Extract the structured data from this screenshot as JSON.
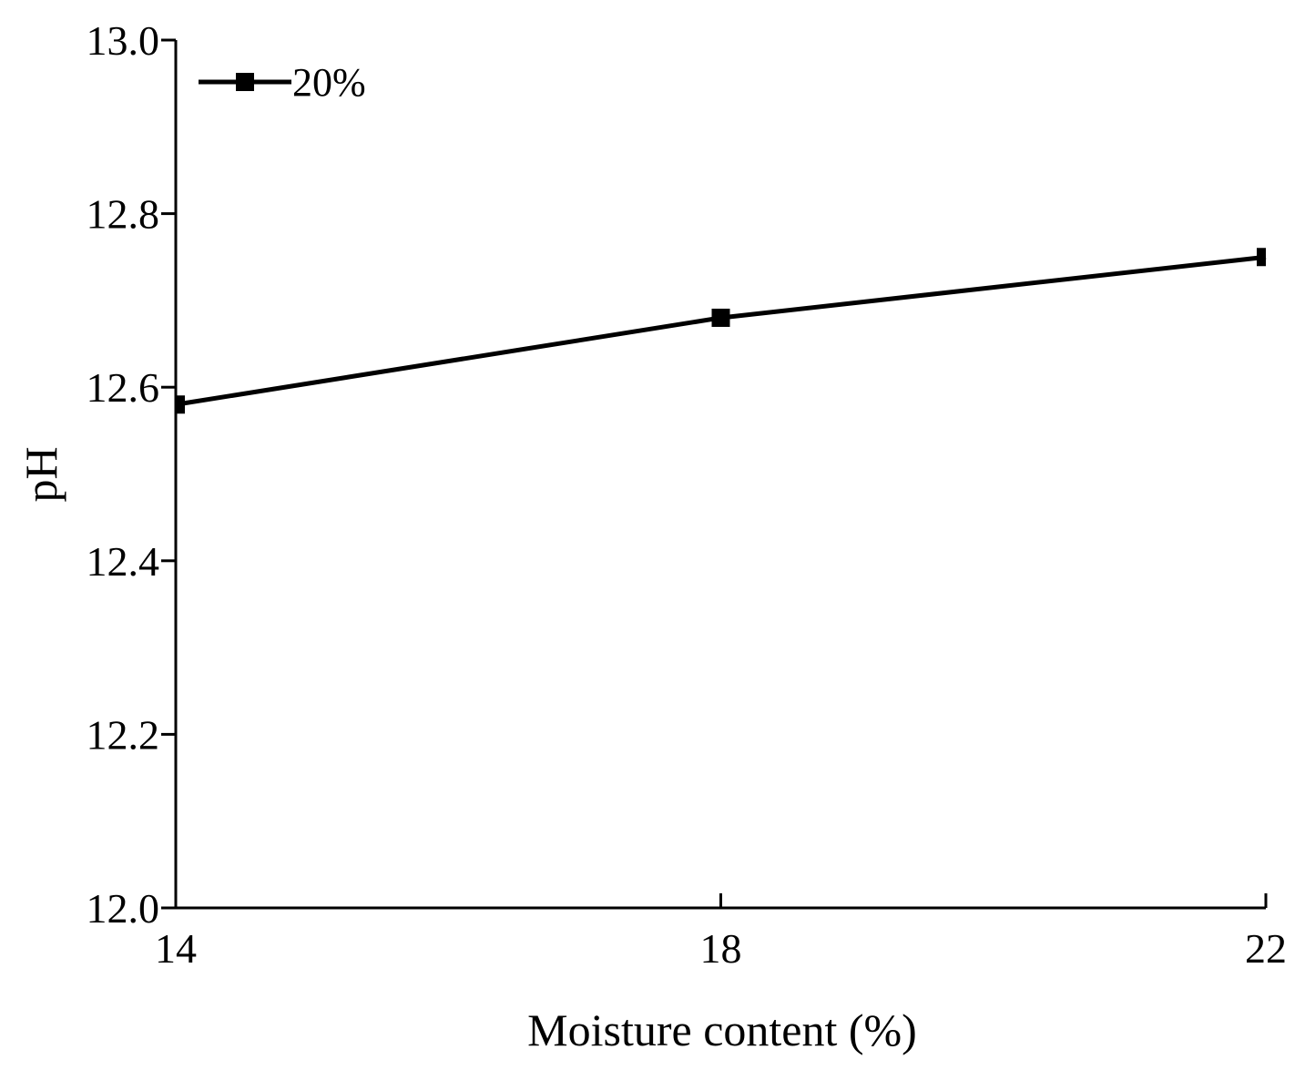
{
  "chart_data": {
    "type": "line",
    "xlabel": "Moisture content (%)",
    "ylabel": "pH",
    "xlim": [
      14,
      22
    ],
    "ylim": [
      12.0,
      13.0
    ],
    "x_ticks": [
      "14",
      "18",
      "22"
    ],
    "y_ticks": [
      "12.0",
      "12.2",
      "12.4",
      "12.6",
      "12.8",
      "13.0"
    ],
    "x": [
      14,
      18,
      22
    ],
    "series": [
      {
        "name": "20%",
        "values": [
          12.58,
          12.68,
          12.75
        ],
        "marker": "square",
        "color": "#000000"
      }
    ],
    "legend_position": "top-left",
    "grid": false
  }
}
